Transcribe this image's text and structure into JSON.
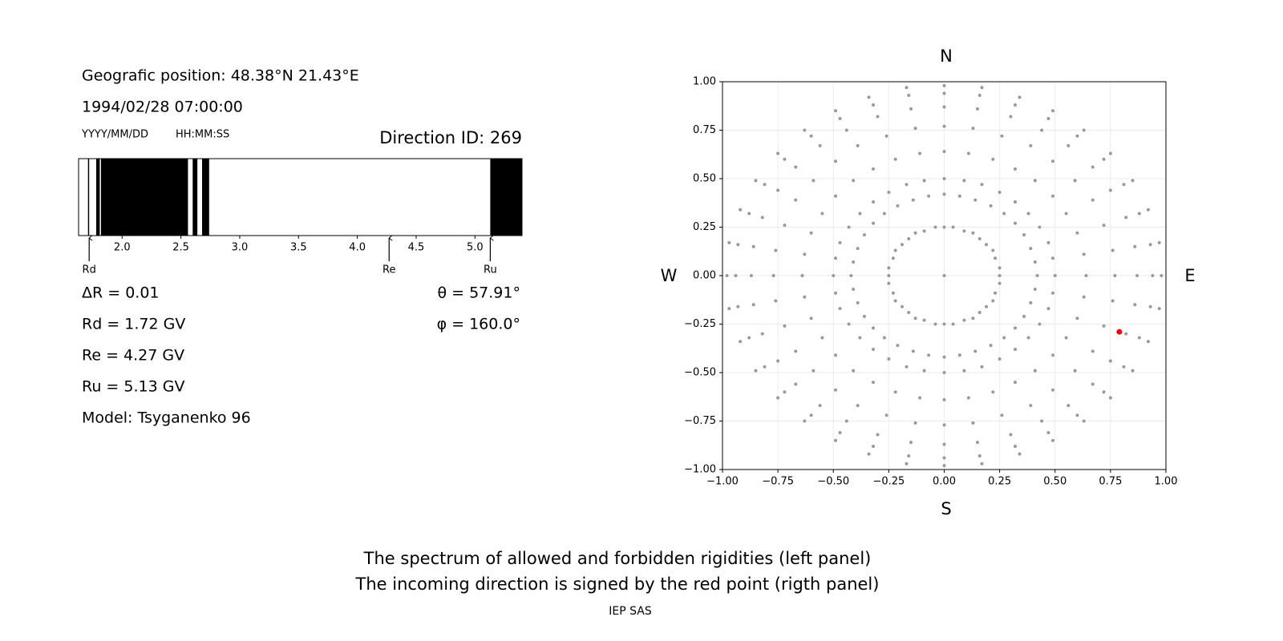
{
  "header": {
    "position": "Geografic position: 48.38°N 21.43°E",
    "datetime": "1994/02/28 07:00:00",
    "date_format": "YYYY/MM/DD",
    "time_format": "HH:MM:SS",
    "direction_id": "Direction ID: 269"
  },
  "readout": {
    "delta_r": "ΔR = 0.01",
    "rd": "Rd = 1.72 GV",
    "re": "Re = 4.27 GV",
    "ru": "Ru = 5.13 GV",
    "model": "Model: Tsyganenko 96",
    "theta": "θ = 57.91°",
    "phi": "φ = 160.0°"
  },
  "chart_data": [
    {
      "type": "spectrum",
      "color": "#000000",
      "xlim": [
        1.63,
        5.4
      ],
      "xticks": [
        {
          "value": 2,
          "label": "2.0"
        },
        {
          "value": 2.5,
          "label": "2.5"
        },
        {
          "value": 3,
          "label": "3.0"
        },
        {
          "value": 3.5,
          "label": "3.5"
        },
        {
          "value": 4,
          "label": "4.0"
        },
        {
          "value": 4.5,
          "label": "4.5"
        },
        {
          "value": 5,
          "label": "5.0"
        }
      ],
      "bands": [
        {
          "from": 1.71,
          "to": 1.72
        },
        {
          "from": 1.78,
          "to": 1.81
        },
        {
          "from": 1.82,
          "to": 2.56
        },
        {
          "from": 2.6,
          "to": 2.64
        },
        {
          "from": 2.68,
          "to": 2.74
        },
        {
          "from": 5.13,
          "to": 5.4
        }
      ],
      "markers": [
        {
          "label": "Rd",
          "value": 1.72
        },
        {
          "label": "Re",
          "value": 4.27
        },
        {
          "label": "Ru",
          "value": 5.13
        }
      ]
    },
    {
      "type": "scatter",
      "grid": true,
      "xlim": [
        -1,
        1
      ],
      "ylim": [
        -1,
        1
      ],
      "xticks": [
        {
          "value": -1,
          "label": "−1.00"
        },
        {
          "value": -0.75,
          "label": "−0.75"
        },
        {
          "value": -0.5,
          "label": "−0.50"
        },
        {
          "value": -0.25,
          "label": "−0.25"
        },
        {
          "value": 0,
          "label": "0.00"
        },
        {
          "value": 0.25,
          "label": "0.25"
        },
        {
          "value": 0.5,
          "label": "0.50"
        },
        {
          "value": 0.75,
          "label": "0.75"
        },
        {
          "value": 1,
          "label": "1.00"
        }
      ],
      "yticks": [
        {
          "value": -1,
          "label": "−1.00"
        },
        {
          "value": -0.75,
          "label": "−0.75"
        },
        {
          "value": -0.5,
          "label": "−0.50"
        },
        {
          "value": -0.25,
          "label": "−0.25"
        },
        {
          "value": 0,
          "label": "0.00"
        },
        {
          "value": 0.25,
          "label": "0.25"
        },
        {
          "value": 0.5,
          "label": "0.50"
        },
        {
          "value": 0.75,
          "label": "0.75"
        },
        {
          "value": 1,
          "label": "1.00"
        }
      ],
      "compass": {
        "north": "N",
        "south": "S",
        "west": "W",
        "east": "E"
      },
      "series": [
        {
          "color": "#999999",
          "x": [
            0,
            0.25,
            0.25,
            0.23,
            0.22,
            0.19,
            0.16,
            0.13,
            0.09,
            0.04,
            0,
            -0.04,
            -0.09,
            -0.13,
            -0.16,
            -0.19,
            -0.22,
            -0.23,
            -0.25,
            -0.25,
            -0.25,
            -0.23,
            -0.22,
            -0.19,
            -0.16,
            -0.13,
            -0.09,
            -0.04,
            0,
            0.04,
            0.09,
            0.13,
            0.16,
            0.19,
            0.22,
            0.23,
            0.25,
            0.42,
            0.41,
            0.39,
            0.36,
            0.32,
            0.27,
            0.21,
            0.14,
            0.07,
            0,
            -0.07,
            -0.14,
            -0.21,
            -0.27,
            -0.32,
            -0.36,
            -0.39,
            -0.41,
            -0.42,
            -0.41,
            -0.39,
            -0.36,
            -0.32,
            -0.27,
            -0.21,
            -0.14,
            -0.07,
            0,
            0.07,
            0.14,
            0.21,
            0.27,
            0.32,
            0.36,
            0.39,
            0.41,
            0.5,
            0.49,
            0.47,
            0.43,
            0.38,
            0.32,
            0.25,
            0.17,
            0.09,
            0,
            -0.09,
            -0.17,
            -0.25,
            -0.32,
            -0.38,
            -0.43,
            -0.47,
            -0.49,
            -0.5,
            -0.49,
            -0.47,
            -0.43,
            -0.38,
            -0.32,
            -0.25,
            -0.17,
            -0.09,
            0,
            0.09,
            0.17,
            0.25,
            0.32,
            0.38,
            0.43,
            0.47,
            0.49,
            0.64,
            0.63,
            0.6,
            0.55,
            0.49,
            0.41,
            0.32,
            0.22,
            0.11,
            0,
            -0.11,
            -0.22,
            -0.32,
            -0.41,
            -0.49,
            -0.55,
            -0.6,
            -0.63,
            -0.64,
            -0.63,
            -0.6,
            -0.55,
            -0.49,
            -0.41,
            -0.32,
            -0.22,
            -0.11,
            0,
            0.11,
            0.22,
            0.32,
            0.41,
            0.49,
            0.55,
            0.6,
            0.63,
            0.77,
            0.76,
            0.72,
            0.67,
            0.59,
            0.49,
            0.39,
            0.26,
            0.13,
            0,
            -0.13,
            -0.26,
            -0.39,
            -0.49,
            -0.59,
            -0.67,
            -0.72,
            -0.76,
            -0.77,
            -0.76,
            -0.72,
            -0.67,
            -0.59,
            -0.49,
            -0.39,
            -0.26,
            -0.13,
            0,
            0.13,
            0.26,
            0.39,
            0.49,
            0.59,
            0.67,
            0.72,
            0.76,
            0.87,
            0.86,
            0.82,
            0.75,
            0.67,
            0.56,
            0.44,
            0.3,
            0.15,
            0,
            -0.15,
            -0.3,
            -0.44,
            -0.56,
            -0.67,
            -0.75,
            -0.82,
            -0.86,
            -0.87,
            -0.86,
            -0.82,
            -0.75,
            -0.67,
            -0.56,
            -0.44,
            -0.3,
            -0.15,
            0,
            0.15,
            0.3,
            0.44,
            0.56,
            0.67,
            0.75,
            0.82,
            0.86,
            0.94,
            0.93,
            0.88,
            0.81,
            0.72,
            0.6,
            0.47,
            0.32,
            0.16,
            0,
            -0.16,
            -0.32,
            -0.47,
            -0.6,
            -0.72,
            -0.81,
            -0.88,
            -0.93,
            -0.94,
            -0.93,
            -0.88,
            -0.81,
            -0.72,
            -0.6,
            -0.47,
            -0.32,
            -0.16,
            0,
            0.16,
            0.32,
            0.47,
            0.6,
            0.72,
            0.81,
            0.88,
            0.93,
            0.98,
            0.97,
            0.92,
            0.85,
            0.75,
            0.63,
            0.49,
            0.34,
            0.17,
            0,
            -0.17,
            -0.34,
            -0.49,
            -0.63,
            -0.75,
            -0.85,
            -0.92,
            -0.97,
            -0.98,
            -0.97,
            -0.92,
            -0.85,
            -0.75,
            -0.63,
            -0.49,
            -0.34,
            -0.17,
            0,
            0.17,
            0.34,
            0.49,
            0.63,
            0.75,
            0.85,
            0.92,
            0.97
          ],
          "values": [
            0,
            0,
            0.04,
            0.09,
            0.13,
            0.16,
            0.19,
            0.22,
            0.23,
            0.25,
            0.25,
            0.25,
            0.23,
            0.22,
            0.19,
            0.16,
            0.13,
            0.09,
            0.04,
            0,
            -0.04,
            -0.09,
            -0.13,
            -0.16,
            -0.19,
            -0.22,
            -0.23,
            -0.25,
            -0.25,
            -0.25,
            -0.23,
            -0.22,
            -0.19,
            -0.16,
            -0.13,
            -0.09,
            -0.04,
            0,
            0.07,
            0.14,
            0.21,
            0.27,
            0.32,
            0.36,
            0.39,
            0.41,
            0.42,
            0.41,
            0.39,
            0.36,
            0.32,
            0.27,
            0.21,
            0.14,
            0.07,
            0,
            -0.07,
            -0.14,
            -0.21,
            -0.27,
            -0.32,
            -0.36,
            -0.39,
            -0.41,
            -0.42,
            -0.41,
            -0.39,
            -0.36,
            -0.32,
            -0.27,
            -0.21,
            -0.14,
            -0.07,
            0,
            0.09,
            0.17,
            0.25,
            0.32,
            0.38,
            0.43,
            0.47,
            0.49,
            0.5,
            0.49,
            0.47,
            0.43,
            0.38,
            0.32,
            0.25,
            0.17,
            0.09,
            0,
            -0.09,
            -0.17,
            -0.25,
            -0.32,
            -0.38,
            -0.43,
            -0.47,
            -0.49,
            -0.5,
            -0.49,
            -0.47,
            -0.43,
            -0.38,
            -0.32,
            -0.25,
            -0.17,
            -0.09,
            0,
            0.11,
            0.22,
            0.32,
            0.41,
            0.49,
            0.55,
            0.6,
            0.63,
            0.64,
            0.63,
            0.6,
            0.55,
            0.49,
            0.41,
            0.32,
            0.22,
            0.11,
            0,
            -0.11,
            -0.22,
            -0.32,
            -0.41,
            -0.49,
            -0.55,
            -0.6,
            -0.63,
            -0.64,
            -0.63,
            -0.6,
            -0.55,
            -0.49,
            -0.41,
            -0.32,
            -0.22,
            -0.11,
            0,
            0.13,
            0.26,
            0.39,
            0.49,
            0.59,
            0.67,
            0.72,
            0.76,
            0.77,
            0.76,
            0.72,
            0.67,
            0.59,
            0.49,
            0.39,
            0.26,
            0.13,
            0,
            -0.13,
            -0.26,
            -0.39,
            -0.49,
            -0.59,
            -0.67,
            -0.72,
            -0.76,
            -0.77,
            -0.76,
            -0.72,
            -0.67,
            -0.59,
            -0.49,
            -0.39,
            -0.26,
            -0.13,
            0,
            0.15,
            0.3,
            0.44,
            0.56,
            0.67,
            0.75,
            0.82,
            0.86,
            0.87,
            0.86,
            0.82,
            0.75,
            0.67,
            0.56,
            0.44,
            0.3,
            0.15,
            0,
            -0.15,
            -0.3,
            -0.44,
            -0.56,
            -0.67,
            -0.75,
            -0.82,
            -0.86,
            -0.87,
            -0.86,
            -0.82,
            -0.75,
            -0.67,
            -0.56,
            -0.44,
            -0.3,
            -0.15,
            0,
            0.16,
            0.32,
            0.47,
            0.6,
            0.72,
            0.81,
            0.88,
            0.93,
            0.94,
            0.93,
            0.88,
            0.81,
            0.72,
            0.6,
            0.47,
            0.32,
            0.16,
            0,
            -0.16,
            -0.32,
            -0.47,
            -0.6,
            -0.72,
            -0.81,
            -0.88,
            -0.93,
            -0.94,
            -0.93,
            -0.88,
            -0.81,
            -0.72,
            -0.6,
            -0.47,
            -0.32,
            -0.16,
            0,
            0.17,
            0.34,
            0.49,
            0.63,
            0.75,
            0.85,
            0.92,
            0.97,
            0.98,
            0.97,
            0.92,
            0.85,
            0.75,
            0.63,
            0.49,
            0.34,
            0.17,
            0,
            -0.17,
            -0.34,
            -0.49,
            -0.63,
            -0.75,
            -0.85,
            -0.92,
            -0.97,
            -0.98,
            -0.97,
            -0.92,
            -0.85,
            -0.75,
            -0.63,
            -0.49,
            -0.34,
            -0.17
          ]
        },
        {
          "color": "#ff0000",
          "x": [
            0.79
          ],
          "values": [
            -0.29
          ]
        }
      ]
    }
  ],
  "caption": [
    "The spectrum of allowed and forbidden rigidities (left panel)",
    "The incoming direction is signed by the red point (rigth panel)"
  ],
  "footer": "IEP SAS"
}
